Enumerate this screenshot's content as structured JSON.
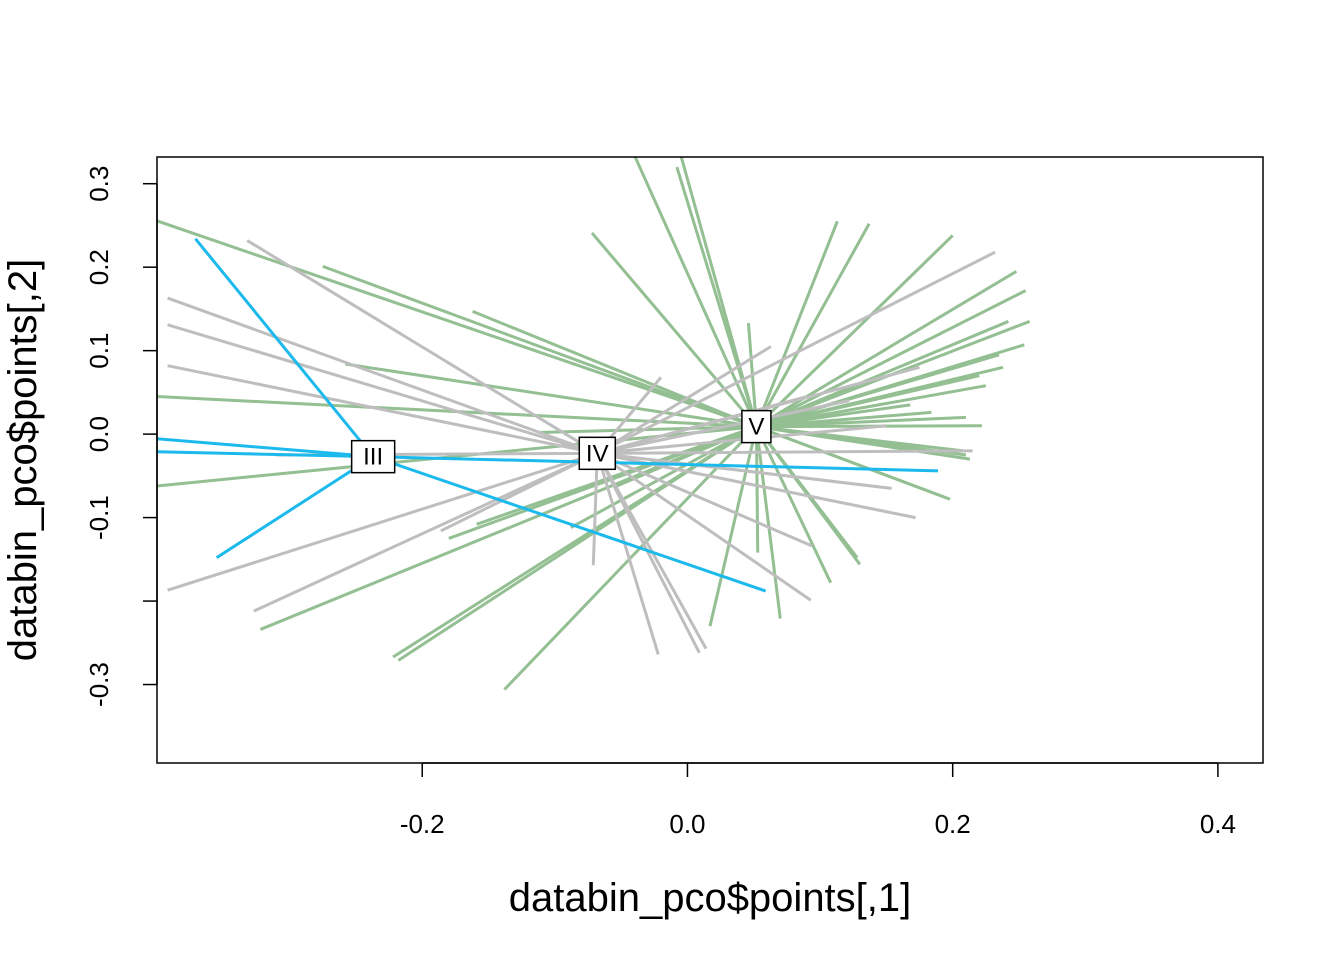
{
  "chart_data": {
    "type": "spider",
    "xlabel": "databin_pco$points[,1]",
    "ylabel": "databin_pco$points[,2]",
    "xlim": [
      -0.4,
      0.434
    ],
    "ylim": [
      -0.394,
      0.332
    ],
    "xticks": [
      -0.2,
      0.0,
      0.2,
      0.4
    ],
    "xtick_labels": [
      "-0.2",
      "0.0",
      "0.2",
      "0.4"
    ],
    "yticks": [
      -0.3,
      -0.2,
      -0.1,
      0.0,
      0.1,
      0.2,
      0.3
    ],
    "ytick_labels": [
      "-0.3",
      "",
      "-0.1",
      "0.0",
      "0.1",
      "0.2",
      "0.3"
    ],
    "grid": false,
    "groups": [
      {
        "label": "III",
        "color": "#1CB9EC",
        "centroid": [
          -0.237,
          -0.027
        ],
        "points": [
          [
            -0.371,
            0.234
          ],
          [
            -0.355,
            -0.148
          ],
          [
            0.059,
            -0.188
          ],
          [
            -0.412,
            -0.004
          ],
          [
            0.189,
            -0.044
          ],
          [
            -0.405,
            -0.021
          ]
        ]
      },
      {
        "label": "IV",
        "color": "#BEBEBE",
        "centroid": [
          -0.068,
          -0.023
        ],
        "points": [
          [
            -0.332,
            0.232
          ],
          [
            -0.392,
            0.163
          ],
          [
            -0.392,
            0.131
          ],
          [
            -0.392,
            0.082
          ],
          [
            -0.392,
            -0.187
          ],
          [
            -0.327,
            -0.212
          ],
          [
            -0.186,
            -0.116
          ],
          [
            -0.071,
            -0.157
          ],
          [
            -0.022,
            -0.264
          ],
          [
            0.009,
            -0.262
          ],
          [
            0.014,
            -0.257
          ],
          [
            0.063,
            0.105
          ],
          [
            0.232,
            0.218
          ],
          [
            0.122,
            0.04
          ],
          [
            0.154,
            -0.065
          ],
          [
            0.172,
            -0.1
          ],
          [
            0.094,
            -0.134
          ],
          [
            0.093,
            -0.199
          ],
          [
            -0.02,
            0.068
          ],
          [
            -0.31,
            -0.025
          ],
          [
            0.15,
            0.01
          ],
          [
            0.215,
            -0.02
          ],
          [
            0.175,
            0.08
          ],
          [
            0.09,
            0.045
          ]
        ]
      },
      {
        "label": "V",
        "color": "#93BF92",
        "centroid": [
          0.052,
          0.009
        ],
        "points": [
          [
            -0.412,
            0.262
          ],
          [
            -0.412,
            0.046
          ],
          [
            -0.412,
            -0.064
          ],
          [
            -0.275,
            0.201
          ],
          [
            -0.258,
            0.084
          ],
          [
            -0.322,
            -0.234
          ],
          [
            -0.222,
            -0.267
          ],
          [
            -0.218,
            -0.271
          ],
          [
            -0.138,
            -0.306
          ],
          [
            -0.162,
            0.147
          ],
          [
            -0.072,
            0.241
          ],
          [
            -0.04,
            0.334
          ],
          [
            -0.005,
            0.334
          ],
          [
            -0.008,
            0.32
          ],
          [
            0.046,
            0.133
          ],
          [
            0.113,
            0.255
          ],
          [
            0.137,
            0.252
          ],
          [
            0.2,
            0.238
          ],
          [
            0.248,
            0.195
          ],
          [
            0.255,
            0.172
          ],
          [
            0.258,
            0.135
          ],
          [
            0.254,
            0.107
          ],
          [
            0.242,
            0.135
          ],
          [
            0.235,
            0.095
          ],
          [
            0.238,
            0.08
          ],
          [
            0.225,
            0.058
          ],
          [
            0.222,
            0.01
          ],
          [
            0.21,
            0.02
          ],
          [
            0.213,
            -0.03
          ],
          [
            0.208,
            -0.02
          ],
          [
            0.21,
            -0.025
          ],
          [
            0.168,
            0.035
          ],
          [
            0.184,
            0.026
          ],
          [
            0.198,
            -0.078
          ],
          [
            0.193,
            -0.075
          ],
          [
            0.13,
            -0.156
          ],
          [
            0.128,
            -0.148
          ],
          [
            0.123,
            -0.14
          ],
          [
            0.108,
            -0.178
          ],
          [
            0.07,
            -0.221
          ],
          [
            0.053,
            -0.142
          ],
          [
            0.017,
            -0.23
          ],
          [
            -0.056,
            -0.064
          ],
          [
            -0.088,
            -0.112
          ],
          [
            -0.159,
            -0.108
          ],
          [
            -0.18,
            -0.125
          ],
          [
            -0.112,
            0.002
          ],
          [
            0.22,
            0.07
          ]
        ]
      }
    ]
  }
}
